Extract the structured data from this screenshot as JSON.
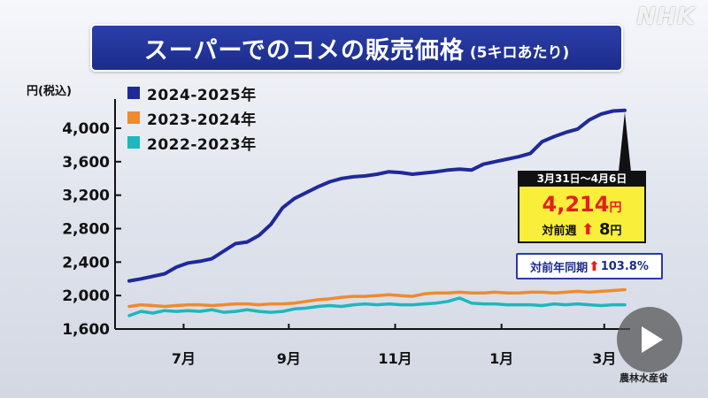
{
  "title": {
    "main": "スーパーでのコメの販売価格",
    "sub": "(5キロあたり)"
  },
  "logo": "NHK",
  "source": "農林水産省",
  "colors": {
    "series_2024_2025": "#1e2a99",
    "series_2023_2024": "#f08a2c",
    "series_2022_2023": "#1db7be",
    "title_bg": "#1c2c8c",
    "highlight_bg": "#f9ee3a",
    "price_red": "#e3201b"
  },
  "annotation": {
    "date_range": "3月31日～4月6日",
    "price": "4,214",
    "price_unit": "円",
    "weekly_label": "対前週",
    "weekly_change": "8",
    "weekly_unit": "円",
    "yoy_label": "対前年同期",
    "yoy_value": "103.8%"
  },
  "chart_data": {
    "type": "line",
    "title": "スーパーでのコメの販売価格",
    "subtitle": "(5キロあたり)",
    "ylabel": "円(税込)",
    "ylim": [
      1600,
      4300
    ],
    "yticks": [
      1600,
      2000,
      2400,
      2800,
      3200,
      3600,
      4000
    ],
    "ytick_labels": [
      "1,600",
      "2,000",
      "2,400",
      "2,800",
      "3,200",
      "3,600",
      "4,000"
    ],
    "x_range": [
      0,
      41
    ],
    "xticks": [
      {
        "x": 4.5,
        "label": "7月"
      },
      {
        "x": 13.2,
        "label": "9月"
      },
      {
        "x": 22,
        "label": "11月"
      },
      {
        "x": 30.8,
        "label": "1月"
      },
      {
        "x": 39.3,
        "label": "3月"
      }
    ],
    "legend_position": "top-left",
    "grid": false,
    "series": [
      {
        "name": "2024-2025年",
        "color": "#1e2a99",
        "values": [
          2175,
          2200,
          2230,
          2260,
          2340,
          2390,
          2410,
          2440,
          2530,
          2620,
          2640,
          2720,
          2850,
          3050,
          3160,
          3230,
          3300,
          3360,
          3400,
          3420,
          3430,
          3450,
          3480,
          3470,
          3450,
          3465,
          3480,
          3500,
          3510,
          3500,
          3570,
          3600,
          3630,
          3660,
          3700,
          3840,
          3900,
          3950,
          3990,
          4100,
          4170,
          4206,
          4214
        ]
      },
      {
        "name": "2023-2024年",
        "color": "#f08a2c",
        "values": [
          1870,
          1890,
          1880,
          1870,
          1880,
          1890,
          1890,
          1880,
          1890,
          1900,
          1900,
          1890,
          1900,
          1900,
          1910,
          1930,
          1950,
          1960,
          1980,
          1990,
          1990,
          2000,
          2010,
          2000,
          1990,
          2020,
          2030,
          2030,
          2040,
          2030,
          2030,
          2040,
          2030,
          2030,
          2040,
          2040,
          2030,
          2040,
          2050,
          2040,
          2050,
          2060,
          2070
        ]
      },
      {
        "name": "2022-2023年",
        "color": "#1db7be",
        "values": [
          1760,
          1810,
          1790,
          1820,
          1810,
          1820,
          1810,
          1830,
          1800,
          1810,
          1830,
          1810,
          1800,
          1810,
          1840,
          1850,
          1870,
          1880,
          1870,
          1890,
          1900,
          1890,
          1900,
          1890,
          1890,
          1900,
          1910,
          1930,
          1970,
          1910,
          1900,
          1900,
          1890,
          1890,
          1890,
          1880,
          1900,
          1890,
          1900,
          1890,
          1880,
          1890,
          1890
        ]
      }
    ]
  }
}
